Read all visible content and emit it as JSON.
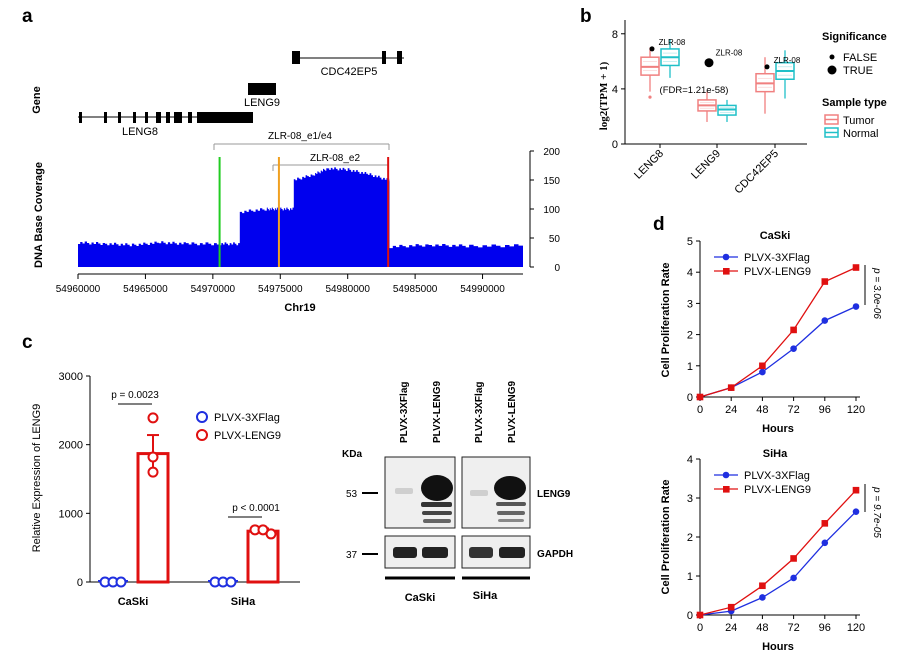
{
  "panel_labels": {
    "a": "a",
    "b": "b",
    "c": "c",
    "d": "d"
  },
  "colors": {
    "coverage": "#0000ee",
    "tumor": "#f08080",
    "normal": "#20c0c8",
    "flag": "#1f2fe0",
    "leng9": "#e01010",
    "line_green": "#22cc22",
    "line_orange": "#f0a020",
    "line_red": "#dd1111"
  },
  "panel_a": {
    "gene_label": "Gene",
    "genes": [
      "LENG8",
      "LENG9",
      "CDC42EP5"
    ],
    "transcripts": [
      "ZLR-08_e1/e4",
      "ZLR-08_e2"
    ],
    "ylabel": "DNA Base Coverage",
    "xlabel": "Chr19",
    "x_ticks": [
      "54960000",
      "54965000",
      "54970000",
      "54975000",
      "54980000",
      "54985000",
      "54990000"
    ],
    "y_ticks": [
      "0",
      "50",
      "100",
      "150",
      "200"
    ]
  },
  "panel_b": {
    "ylabel": "log2(TPM + 1)",
    "y_ticks": [
      "0",
      "4",
      "8"
    ],
    "categories": [
      "LENG8",
      "LENG9",
      "CDC42EP5"
    ],
    "point_labels": [
      "ZLR-08",
      "ZLR-08",
      "ZLR-08"
    ],
    "fdr_label": "(FDR=1.21e-58)",
    "legend_significance_title": "Significance",
    "legend_significance": [
      "FALSE",
      "TRUE"
    ],
    "legend_sample_title": "Sample type",
    "legend_samples": [
      "Tumor",
      "Normal"
    ]
  },
  "panel_c": {
    "ylabel": "Relative Expression of LENG9",
    "y_ticks": [
      "0",
      "1000",
      "2000",
      "3000"
    ],
    "groups": [
      "CaSki",
      "SiHa"
    ],
    "legend": [
      "PLVX-3XFlag",
      "PLVX-LENG9"
    ],
    "pval_caski": "p = 0.0023",
    "pval_siha": "p < 0.0001",
    "blot": {
      "kda_label": "KDa",
      "lanes": [
        "PLVX-3XFlag",
        "PLVX-LENG9",
        "PLVX-3XFlag",
        "PLVX-LENG9"
      ],
      "markers": [
        "53",
        "37"
      ],
      "bands": [
        "LENG9",
        "GAPDH"
      ],
      "cells": [
        "CaSki",
        "SiHa"
      ]
    }
  },
  "panel_d": {
    "ylabel": "Cell Proliferation Rate",
    "xlabel": "Hours",
    "legend": [
      "PLVX-3XFlag",
      "PLVX-LENG9"
    ],
    "x_ticks": [
      "0",
      "24",
      "48",
      "72",
      "96",
      "120"
    ],
    "caski": {
      "title": "CaSki",
      "pval": "p = 3.0e-06",
      "y_ticks": [
        "0",
        "1",
        "2",
        "3",
        "4",
        "5"
      ]
    },
    "siha": {
      "title": "SiHa",
      "pval": "p = 9.7e-05",
      "y_ticks": [
        "0",
        "1",
        "2",
        "3",
        "4"
      ]
    }
  },
  "chart_data": [
    {
      "type": "area",
      "panel": "a",
      "xlabel": "Chr19",
      "ylabel": "DNA Base Coverage",
      "ylim": [
        0,
        200
      ],
      "xlim": [
        54960000,
        54993000
      ],
      "x": [
        54960000,
        54962000,
        54964000,
        54966000,
        54968000,
        54970500,
        54972000,
        54974000,
        54974900,
        54976000,
        54977500,
        54978500,
        54980000,
        54981500,
        54983000,
        54983100,
        54986000,
        54989000,
        54993000
      ],
      "y": [
        42,
        40,
        38,
        42,
        40,
        40,
        95,
        100,
        100,
        150,
        160,
        170,
        168,
        160,
        150,
        35,
        38,
        36,
        37
      ]
    },
    {
      "type": "box",
      "panel": "b",
      "ylabel": "log2(TPM + 1)",
      "ylim": [
        0,
        9
      ],
      "categories": [
        "LENG8",
        "LENG9",
        "CDC42EP5"
      ],
      "series": [
        {
          "name": "Tumor",
          "stats": [
            [
              3.8,
              5.0,
              5.6,
              6.3,
              7.0
            ],
            [
              1.6,
              2.4,
              2.8,
              3.2,
              3.8
            ],
            [
              2.2,
              3.8,
              4.4,
              5.1,
              6.3
            ]
          ]
        },
        {
          "name": "Normal",
          "stats": [
            [
              4.8,
              5.7,
              6.3,
              6.9,
              7.6
            ],
            [
              1.6,
              2.1,
              2.5,
              2.8,
              3.2
            ],
            [
              3.3,
              4.7,
              5.3,
              5.9,
              6.8
            ]
          ]
        }
      ],
      "highlight_points": [
        6.9,
        5.9,
        5.6
      ],
      "highlight_significant": [
        false,
        true,
        false
      ]
    },
    {
      "type": "bar",
      "panel": "c",
      "ylabel": "Relative Expression of LENG9",
      "ylim": [
        0,
        3000
      ],
      "categories": [
        "CaSki",
        "SiHa"
      ],
      "series": [
        {
          "name": "PLVX-3XFlag",
          "values": [
            1,
            1
          ],
          "points": [
            [
              1,
              1,
              1
            ],
            [
              1,
              1,
              1
            ]
          ]
        },
        {
          "name": "PLVX-LENG9",
          "values": [
            1870,
            740
          ],
          "errors": [
            270,
            40
          ],
          "points": [
            [
              2390,
              1820,
              1600
            ],
            [
              760,
              760,
              700
            ]
          ]
        }
      ]
    },
    {
      "type": "line",
      "panel": "d",
      "title": "CaSki",
      "xlabel": "Hours",
      "ylabel": "Cell Proliferation Rate",
      "x": [
        0,
        24,
        48,
        72,
        96,
        120
      ],
      "ylim": [
        0,
        5
      ],
      "series": [
        {
          "name": "PLVX-3XFlag",
          "values": [
            0,
            0.3,
            0.8,
            1.55,
            2.45,
            2.9
          ]
        },
        {
          "name": "PLVX-LENG9",
          "values": [
            0,
            0.3,
            1.0,
            2.15,
            3.7,
            4.15
          ]
        }
      ]
    },
    {
      "type": "line",
      "panel": "d",
      "title": "SiHa",
      "xlabel": "Hours",
      "ylabel": "Cell Proliferation Rate",
      "x": [
        0,
        24,
        48,
        72,
        96,
        120
      ],
      "ylim": [
        0,
        4
      ],
      "series": [
        {
          "name": "PLVX-3XFlag",
          "values": [
            0,
            0.1,
            0.45,
            0.95,
            1.85,
            2.65
          ]
        },
        {
          "name": "PLVX-LENG9",
          "values": [
            0,
            0.2,
            0.75,
            1.45,
            2.35,
            3.2
          ]
        }
      ]
    }
  ]
}
